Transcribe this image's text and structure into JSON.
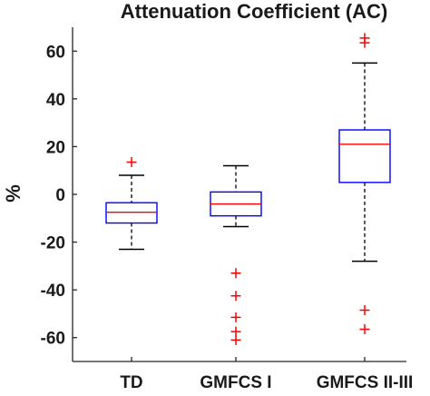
{
  "chart_data": {
    "type": "box",
    "title": "Attenuation Coefficient (AC)",
    "ylabel": "%",
    "xlabel": "",
    "ylim": [
      -70,
      70
    ],
    "yticks": [
      -60,
      -40,
      -20,
      0,
      20,
      40,
      60
    ],
    "grid": false,
    "categories": [
      "TD",
      "GMFCS I",
      "GMFCS II-III"
    ],
    "boxes": [
      {
        "category": "TD",
        "whisker_low": -23,
        "q1": -12,
        "median": -7.5,
        "q3": -3.5,
        "whisker_high": 8,
        "outliers": [
          13.5
        ]
      },
      {
        "category": "GMFCS I",
        "whisker_low": -13.5,
        "q1": -9,
        "median": -4,
        "q3": 1,
        "whisker_high": 12,
        "outliers": [
          -33,
          -42.5,
          -51.5,
          -57.5,
          -61
        ]
      },
      {
        "category": "GMFCS II-III",
        "whisker_low": -28,
        "q1": 5,
        "median": 21,
        "q3": 27,
        "whisker_high": 55,
        "outliers": [
          -48.5,
          -56.5,
          63.5,
          65.5
        ]
      }
    ],
    "colors": {
      "box": "#0000ff",
      "median": "#ff0000",
      "whisker": "#000000",
      "outlier": "#ff0000",
      "axis": "#262626"
    }
  }
}
